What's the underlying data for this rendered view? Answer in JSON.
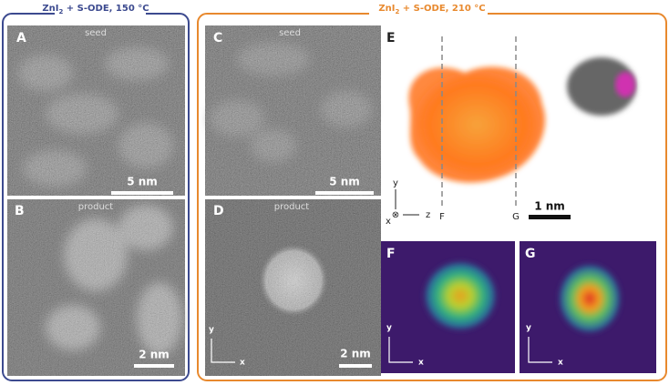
{
  "left": {
    "title": {
      "prefix": "ZnI",
      "sub": "2",
      "rest": " + S-ODE, 150 °C"
    },
    "panels": [
      {
        "letter": "A",
        "caption": "seed",
        "scale": "5 nm"
      },
      {
        "letter": "B",
        "caption": "product",
        "scale": "2 nm"
      }
    ]
  },
  "right": {
    "title": {
      "prefix": "ZnI",
      "sub": "2",
      "rest": " + S-ODE, 210 °C"
    },
    "panels": [
      {
        "letter": "C",
        "caption": "seed",
        "scale": "5 nm"
      },
      {
        "letter": "D",
        "caption": "product",
        "scale": "2 nm",
        "axes": {
          "y": "y",
          "x": "x"
        }
      }
    ],
    "e": {
      "letter": "E",
      "axes": {
        "y": "y",
        "x": "x",
        "z": "z",
        "into": "⊗"
      },
      "slices": [
        "F",
        "G"
      ],
      "scale": "1 nm"
    },
    "f": {
      "letter": "F",
      "axes": {
        "y": "y",
        "x": "x"
      }
    },
    "g": {
      "letter": "G",
      "axes": {
        "y": "y",
        "x": "x"
      }
    }
  }
}
